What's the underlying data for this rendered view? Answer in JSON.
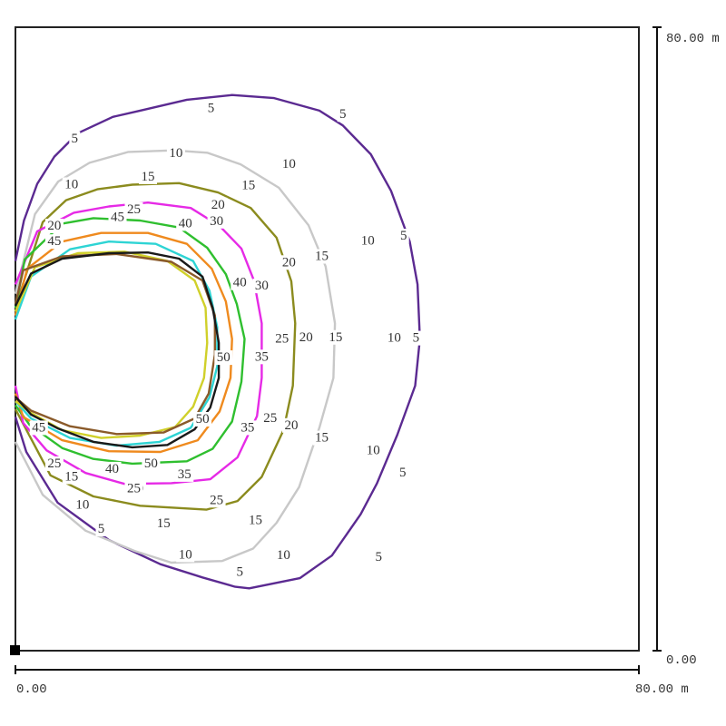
{
  "chart_data": {
    "type": "contour",
    "title": "",
    "x_axis": {
      "start_label": "0.00",
      "end_label": "80.00 m",
      "range": [
        0,
        80
      ],
      "unit": "m"
    },
    "y_axis": {
      "start_label": "0.00",
      "end_label": "80.00 m",
      "range": [
        0,
        80
      ],
      "unit": "m"
    },
    "grid": false,
    "legend": "none",
    "levels": [
      {
        "value": 5,
        "color": "#5b2a91",
        "label": "5",
        "points": [
          [
            0.0,
            50.0
          ],
          [
            1.1,
            55.2
          ],
          [
            2.8,
            59.9
          ],
          [
            5.0,
            63.4
          ],
          [
            8.0,
            66.4
          ],
          [
            12.5,
            68.5
          ],
          [
            16.0,
            69.3
          ],
          [
            22.0,
            70.7
          ],
          [
            27.8,
            71.3
          ],
          [
            33.2,
            70.9
          ],
          [
            39.0,
            69.3
          ],
          [
            42.0,
            67.4
          ],
          [
            45.6,
            63.7
          ],
          [
            48.2,
            59.0
          ],
          [
            50.6,
            52.5
          ],
          [
            51.6,
            47.0
          ],
          [
            51.9,
            40.0
          ],
          [
            51.3,
            34.0
          ],
          [
            49.0,
            27.7
          ],
          [
            46.4,
            21.5
          ],
          [
            44.3,
            17.5
          ],
          [
            40.6,
            12.2
          ],
          [
            36.5,
            9.3
          ],
          [
            30.0,
            8.0
          ],
          [
            28.2,
            8.2
          ],
          [
            24.0,
            9.4
          ],
          [
            18.6,
            11.1
          ],
          [
            12.0,
            14.2
          ],
          [
            5.4,
            19.0
          ],
          [
            1.4,
            25.5
          ],
          [
            0.0,
            30.0
          ]
        ],
        "labels": [
          [
            7.6,
            65.7
          ],
          [
            25.1,
            69.6
          ],
          [
            42.0,
            68.8
          ],
          [
            49.8,
            53.2
          ],
          [
            51.4,
            40.1
          ],
          [
            49.7,
            22.8
          ],
          [
            46.6,
            12.0
          ],
          [
            28.8,
            10.1
          ],
          [
            11.0,
            15.6
          ]
        ]
      },
      {
        "value": 10,
        "color": "#c8c8c8",
        "label": "10",
        "points": [
          [
            0.0,
            45.8
          ],
          [
            2.5,
            56.0
          ],
          [
            5.5,
            60.2
          ],
          [
            9.5,
            62.6
          ],
          [
            14.5,
            64.0
          ],
          [
            20.3,
            64.2
          ],
          [
            24.6,
            63.9
          ],
          [
            28.9,
            62.4
          ],
          [
            33.8,
            59.4
          ],
          [
            37.6,
            54.6
          ],
          [
            39.8,
            49.3
          ],
          [
            41.0,
            42.0
          ],
          [
            40.8,
            35.0
          ],
          [
            39.0,
            28.6
          ],
          [
            36.4,
            21.0
          ],
          [
            33.5,
            16.4
          ],
          [
            30.5,
            13.1
          ],
          [
            26.5,
            11.5
          ],
          [
            20.0,
            11.3
          ],
          [
            15.3,
            12.8
          ],
          [
            9.0,
            15.4
          ],
          [
            3.5,
            20.0
          ],
          [
            0.0,
            26.8
          ]
        ],
        "labels": [
          [
            7.2,
            59.8
          ],
          [
            20.6,
            63.8
          ],
          [
            35.1,
            62.4
          ],
          [
            45.2,
            52.6
          ],
          [
            48.6,
            40.1
          ],
          [
            45.9,
            25.7
          ],
          [
            34.4,
            12.2
          ],
          [
            21.8,
            12.3
          ],
          [
            8.6,
            18.7
          ]
        ]
      },
      {
        "value": 15,
        "color": "#8b8b1e",
        "label": "15",
        "points": [
          [
            0.0,
            44.0
          ],
          [
            3.5,
            55.0
          ],
          [
            6.5,
            57.8
          ],
          [
            10.5,
            59.2
          ],
          [
            15.0,
            59.8
          ],
          [
            21.0,
            60.0
          ],
          [
            26.0,
            58.8
          ],
          [
            30.2,
            56.8
          ],
          [
            33.5,
            53.0
          ],
          [
            35.4,
            47.4
          ],
          [
            35.9,
            42.0
          ],
          [
            35.6,
            34.0
          ],
          [
            34.4,
            28.3
          ],
          [
            31.6,
            22.3
          ],
          [
            28.5,
            19.2
          ],
          [
            24.5,
            18.1
          ],
          [
            16.0,
            18.6
          ],
          [
            10.0,
            19.8
          ],
          [
            4.5,
            22.5
          ],
          [
            0.0,
            31.0
          ]
        ],
        "labels": [
          [
            17.0,
            60.8
          ],
          [
            29.9,
            59.7
          ],
          [
            39.3,
            50.6
          ],
          [
            41.1,
            40.2
          ],
          [
            39.3,
            27.3
          ],
          [
            30.8,
            16.7
          ],
          [
            19.0,
            16.3
          ],
          [
            7.2,
            22.3
          ]
        ]
      },
      {
        "value": 20,
        "color": "#e62ae6",
        "label": "20",
        "points": [
          [
            0.0,
            47.0
          ],
          [
            2.8,
            53.8
          ],
          [
            7.5,
            56.2
          ],
          [
            12.0,
            57.0
          ],
          [
            17.0,
            57.5
          ],
          [
            22.5,
            56.8
          ],
          [
            26.2,
            54.5
          ],
          [
            29.0,
            51.6
          ],
          [
            30.6,
            47.5
          ],
          [
            31.6,
            42.0
          ],
          [
            31.6,
            35.0
          ],
          [
            31.0,
            30.1
          ],
          [
            28.5,
            24.8
          ],
          [
            25.0,
            22.0
          ],
          [
            20.0,
            21.5
          ],
          [
            14.0,
            21.4
          ],
          [
            9.0,
            22.8
          ],
          [
            4.0,
            25.7
          ],
          [
            1.0,
            29.2
          ],
          [
            0.0,
            34.0
          ]
        ],
        "labels": [
          [
            5.0,
            54.5
          ],
          [
            26.0,
            57.2
          ],
          [
            35.1,
            49.8
          ],
          [
            37.3,
            40.2
          ],
          [
            35.4,
            28.9
          ],
          [
            15.6,
            20.8
          ]
        ]
      },
      {
        "value": 25,
        "color": "#2fbf2f",
        "label": "25",
        "points": [
          [
            0.0,
            44.0
          ],
          [
            1.2,
            50.2
          ],
          [
            6.0,
            54.8
          ],
          [
            10.0,
            55.5
          ],
          [
            16.0,
            55.2
          ],
          [
            21.0,
            54.3
          ],
          [
            24.6,
            51.7
          ],
          [
            27.0,
            48.3
          ],
          [
            28.4,
            44.5
          ],
          [
            29.4,
            40.0
          ],
          [
            29.0,
            34.5
          ],
          [
            27.8,
            29.4
          ],
          [
            25.3,
            25.9
          ],
          [
            22.0,
            24.3
          ],
          [
            15.0,
            24.0
          ],
          [
            10.0,
            24.6
          ],
          [
            6.0,
            26.0
          ],
          [
            1.8,
            29.0
          ],
          [
            0.0,
            31.5
          ]
        ],
        "labels": [
          [
            15.2,
            56.6
          ],
          [
            34.2,
            40.0
          ],
          [
            32.7,
            29.8
          ],
          [
            25.8,
            19.3
          ],
          [
            15.2,
            20.8
          ],
          [
            5.0,
            24.0
          ]
        ]
      },
      {
        "value": 30,
        "color": "#ef8a1e",
        "label": "30",
        "points": [
          [
            0.0,
            43.0
          ],
          [
            1.5,
            49.0
          ],
          [
            6.0,
            52.5
          ],
          [
            11.0,
            53.6
          ],
          [
            17.0,
            53.6
          ],
          [
            22.0,
            52.2
          ],
          [
            25.2,
            49.0
          ],
          [
            27.0,
            44.8
          ],
          [
            27.8,
            40.0
          ],
          [
            27.6,
            35.0
          ],
          [
            26.2,
            30.7
          ],
          [
            23.4,
            27.0
          ],
          [
            18.6,
            25.5
          ],
          [
            12.0,
            25.6
          ],
          [
            6.0,
            27.0
          ],
          [
            1.0,
            30.0
          ],
          [
            0.0,
            33.0
          ]
        ],
        "labels": [
          [
            25.8,
            55.1
          ],
          [
            31.6,
            46.8
          ]
        ]
      },
      {
        "value": 35,
        "color": "#2ed4d4",
        "label": "35",
        "points": [
          [
            0.0,
            42.5
          ],
          [
            2.0,
            48.0
          ],
          [
            7.0,
            51.5
          ],
          [
            12.0,
            52.5
          ],
          [
            18.0,
            52.2
          ],
          [
            22.8,
            50.0
          ],
          [
            24.9,
            46.2
          ],
          [
            25.9,
            41.5
          ],
          [
            25.9,
            36.5
          ],
          [
            24.9,
            32.5
          ],
          [
            22.5,
            28.6
          ],
          [
            18.5,
            26.8
          ],
          [
            13.0,
            26.3
          ],
          [
            7.0,
            27.3
          ],
          [
            2.0,
            29.8
          ],
          [
            0.0,
            32.0
          ]
        ],
        "labels": [
          [
            31.6,
            37.7
          ],
          [
            29.8,
            28.6
          ],
          [
            21.7,
            22.6
          ]
        ]
      },
      {
        "value": 40,
        "color": "#d0d02a",
        "label": "40",
        "points": [
          [
            0.0,
            43.5
          ],
          [
            2.5,
            49.2
          ],
          [
            8.0,
            51.0
          ],
          [
            14.0,
            51.2
          ],
          [
            19.5,
            50.0
          ],
          [
            23.0,
            47.5
          ],
          [
            24.4,
            44.0
          ],
          [
            24.6,
            39.5
          ],
          [
            24.2,
            35.0
          ],
          [
            22.8,
            31.3
          ],
          [
            20.5,
            28.7
          ],
          [
            16.0,
            27.6
          ],
          [
            11.0,
            27.3
          ],
          [
            6.0,
            28.3
          ],
          [
            2.0,
            30.5
          ],
          [
            0.0,
            32.0
          ]
        ],
        "labels": [
          [
            21.8,
            54.8
          ],
          [
            28.8,
            47.2
          ],
          [
            12.4,
            23.3
          ]
        ]
      },
      {
        "value": 45,
        "color": "#8a5a2a",
        "label": "45",
        "points": [
          [
            0.0,
            44.5
          ],
          [
            1.0,
            48.8
          ],
          [
            6.0,
            50.6
          ],
          [
            13.0,
            50.9
          ],
          [
            20.0,
            49.9
          ],
          [
            24.0,
            47.5
          ],
          [
            25.6,
            43.0
          ],
          [
            25.6,
            38.0
          ],
          [
            24.8,
            33.0
          ],
          [
            23.0,
            29.8
          ],
          [
            19.0,
            28.0
          ],
          [
            13.0,
            27.8
          ],
          [
            7.0,
            28.8
          ],
          [
            2.0,
            30.8
          ],
          [
            0.0,
            32.5
          ]
        ],
        "labels": [
          [
            5.0,
            52.5
          ],
          [
            13.1,
            55.6
          ],
          [
            3.0,
            28.6
          ]
        ]
      },
      {
        "value": 50,
        "color": "#1a1a1a",
        "label": "50",
        "points": [
          [
            0.0,
            44.2
          ],
          [
            2.0,
            48.4
          ],
          [
            6.0,
            50.3
          ],
          [
            12.0,
            51.0
          ],
          [
            17.0,
            51.1
          ],
          [
            21.0,
            50.3
          ],
          [
            24.0,
            48.0
          ],
          [
            25.3,
            44.0
          ],
          [
            26.1,
            39.5
          ],
          [
            26.1,
            35.0
          ],
          [
            25.0,
            31.2
          ],
          [
            23.0,
            28.4
          ],
          [
            19.5,
            26.4
          ],
          [
            15.0,
            26.1
          ],
          [
            10.0,
            26.8
          ],
          [
            5.5,
            28.5
          ],
          [
            2.0,
            30.3
          ],
          [
            0.0,
            32.6
          ]
        ],
        "labels": [
          [
            26.7,
            37.6
          ],
          [
            24.0,
            29.7
          ],
          [
            17.4,
            24.0
          ]
        ]
      }
    ]
  }
}
